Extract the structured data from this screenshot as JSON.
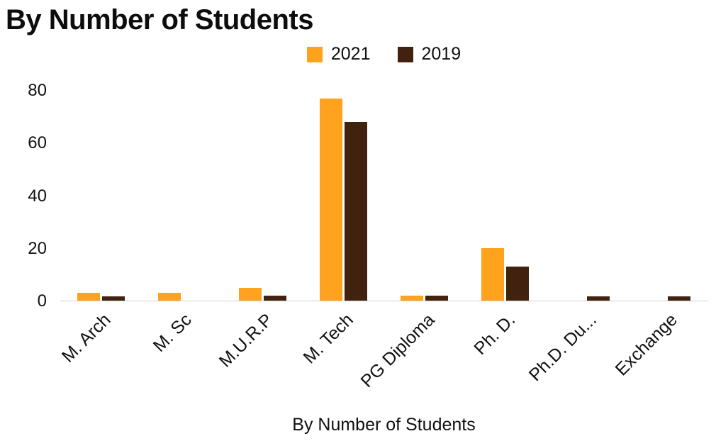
{
  "chart_data": {
    "type": "bar",
    "title": "By Number of Students",
    "xlabel": "By Number of Students",
    "ylabel": "",
    "categories": [
      "M. Arch",
      "M. Sc",
      "M.U.R.P",
      "M. Tech",
      "PG Diploma",
      "Ph. D.",
      "Ph.D. Du...",
      "Exchange"
    ],
    "series": [
      {
        "name": "2021",
        "color": "#FFA21D",
        "values": [
          3,
          3,
          5,
          77,
          2,
          20,
          0,
          0
        ]
      },
      {
        "name": "2019",
        "color": "#40220E",
        "values": [
          1.5,
          0,
          2,
          68,
          2,
          13,
          1.5,
          1.5
        ]
      }
    ],
    "ylim": [
      0,
      80
    ],
    "yticks": [
      0,
      20,
      40,
      60,
      80
    ],
    "legend_position": "top",
    "grid": "off"
  }
}
